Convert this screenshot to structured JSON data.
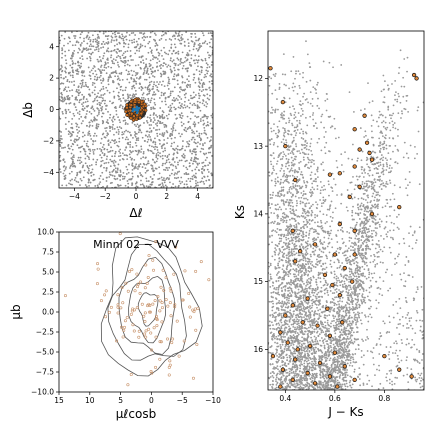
{
  "chart_data": [
    {
      "type": "scatter",
      "panel": "sky",
      "xlabel": "Δℓ",
      "ylabel": "Δb",
      "xlim": [
        -5,
        5
      ],
      "ylim": [
        -5,
        5
      ],
      "xticks": [
        "−4",
        "−2",
        "0",
        "2",
        "4"
      ],
      "yticks": [
        "4",
        "2",
        "0",
        "−2",
        "−4"
      ],
      "xtick_values": [
        -4,
        -2,
        0,
        2,
        4
      ],
      "ytick_values": [
        4,
        2,
        0,
        -2,
        -4
      ],
      "field_stars": "uniform gray points across the full field",
      "cluster_center": [
        0,
        0
      ],
      "cluster_radius": 0.7,
      "cluster_colors": {
        "ring": "#cc6e1f",
        "core": "#1f77b4",
        "field": "#8c8c8c"
      }
    },
    {
      "type": "scatter",
      "panel": "proper-motion",
      "title": "Minni 02 − VVV",
      "xlabel": "μℓcosb",
      "ylabel": "μb",
      "xlim": [
        15,
        -10
      ],
      "ylim": [
        -10,
        10
      ],
      "xticks": [
        "15",
        "10",
        "5",
        "0",
        "−5",
        "−10"
      ],
      "yticks": [
        "10.0",
        "7.5",
        "5.0",
        "2.5",
        "0.0",
        "−2.5",
        "−5.0",
        "−7.5",
        "−10.0"
      ],
      "xtick_values": [
        15,
        10,
        5,
        0,
        -5,
        -10
      ],
      "ytick_values": [
        10,
        7.5,
        5,
        2.5,
        0,
        -2.5,
        -5,
        -7.5,
        -10
      ],
      "contour_center": [
        0.5,
        0.5
      ],
      "contour_radii": [
        [
          1.5,
          2.0
        ],
        [
          3.0,
          3.8
        ],
        [
          4.5,
          5.5
        ],
        [
          6.0,
          7.0
        ],
        [
          7.5,
          8.5
        ]
      ]
    },
    {
      "type": "scatter",
      "panel": "cmd",
      "xlabel": "J − Ks",
      "ylabel": "Ks",
      "xlim": [
        0.33,
        0.96
      ],
      "ylim": [
        16.6,
        11.3
      ],
      "xticks": [
        "0.4",
        "0.6",
        "0.8"
      ],
      "yticks": [
        "12",
        "13",
        "14",
        "15",
        "16"
      ],
      "xtick_values": [
        0.4,
        0.6,
        0.8
      ],
      "ytick_values": [
        12,
        13,
        14,
        15,
        16
      ],
      "members": [
        [
          0.34,
          11.85
        ],
        [
          0.39,
          12.35
        ],
        [
          0.92,
          11.95
        ],
        [
          0.93,
          12.0
        ],
        [
          0.72,
          12.55
        ],
        [
          0.68,
          12.75
        ],
        [
          0.73,
          12.95
        ],
        [
          0.4,
          13.0
        ],
        [
          0.7,
          13.05
        ],
        [
          0.74,
          13.1
        ],
        [
          0.75,
          13.2
        ],
        [
          0.68,
          13.3
        ],
        [
          0.62,
          13.4
        ],
        [
          0.58,
          13.42
        ],
        [
          0.44,
          13.5
        ],
        [
          0.7,
          13.6
        ],
        [
          0.66,
          13.75
        ],
        [
          0.86,
          13.9
        ],
        [
          0.75,
          14.0
        ],
        [
          0.62,
          14.15
        ],
        [
          0.68,
          14.25
        ],
        [
          0.43,
          14.25
        ],
        [
          0.52,
          14.45
        ],
        [
          0.46,
          14.55
        ],
        [
          0.6,
          14.6
        ],
        [
          0.68,
          14.6
        ],
        [
          0.44,
          14.7
        ],
        [
          0.64,
          14.8
        ],
        [
          0.56,
          14.9
        ],
        [
          0.67,
          15.0
        ],
        [
          0.59,
          15.05
        ],
        [
          0.62,
          15.2
        ],
        [
          0.49,
          15.25
        ],
        [
          0.43,
          15.35
        ],
        [
          0.57,
          15.4
        ],
        [
          0.4,
          15.5
        ],
        [
          0.47,
          15.6
        ],
        [
          0.53,
          15.65
        ],
        [
          0.63,
          15.6
        ],
        [
          0.38,
          15.75
        ],
        [
          0.58,
          15.8
        ],
        [
          0.41,
          15.9
        ],
        [
          0.5,
          15.95
        ],
        [
          0.45,
          16.0
        ],
        [
          0.6,
          16.05
        ],
        [
          0.35,
          16.1
        ],
        [
          0.44,
          16.15
        ],
        [
          0.54,
          16.2
        ],
        [
          0.64,
          16.25
        ],
        [
          0.39,
          16.3
        ],
        [
          0.49,
          16.35
        ],
        [
          0.58,
          16.4
        ],
        [
          0.8,
          16.1
        ],
        [
          0.86,
          16.3
        ],
        [
          0.43,
          16.45
        ],
        [
          0.52,
          16.5
        ],
        [
          0.68,
          16.45
        ],
        [
          0.38,
          16.55
        ],
        [
          0.61,
          16.55
        ],
        [
          0.91,
          16.4
        ]
      ]
    }
  ]
}
